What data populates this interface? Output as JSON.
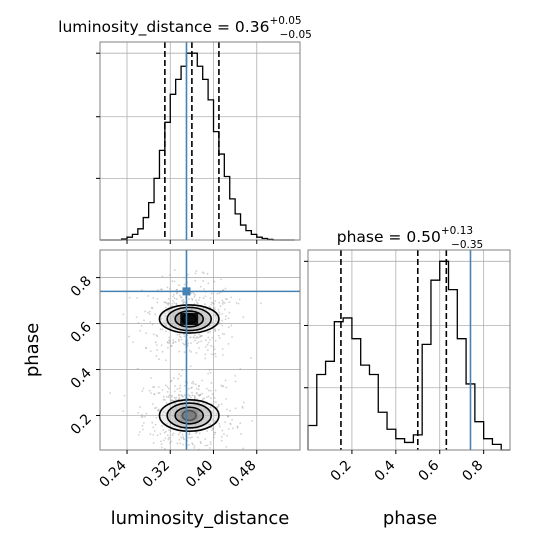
{
  "chart_data": [
    {
      "type": "histogram",
      "title": {
        "base": "luminosity_distance = 0.36",
        "upper": "+0.05",
        "lower": "−0.05"
      },
      "x": [
        0.19,
        0.2,
        0.21,
        0.22,
        0.23,
        0.24,
        0.25,
        0.26,
        0.27,
        0.28,
        0.29,
        0.3,
        0.31,
        0.32,
        0.33,
        0.34,
        0.35,
        0.36,
        0.37,
        0.38,
        0.39,
        0.4,
        0.41,
        0.42,
        0.43,
        0.44,
        0.45,
        0.46,
        0.47,
        0.48,
        0.49,
        0.5,
        0.51,
        0.52,
        0.53,
        0.54,
        0.55
      ],
      "values": [
        0.0,
        0.0,
        0.0,
        0.0,
        0.005,
        0.015,
        0.03,
        0.06,
        0.12,
        0.2,
        0.33,
        0.48,
        0.63,
        0.78,
        0.86,
        0.93,
        1.0,
        1.0,
        0.93,
        0.86,
        0.75,
        0.58,
        0.46,
        0.34,
        0.22,
        0.14,
        0.08,
        0.05,
        0.03,
        0.015,
        0.008,
        0.003,
        0.0,
        0.0,
        0.0,
        0.0
      ],
      "quantiles": [
        0.31,
        0.36,
        0.41
      ],
      "truth": 0.35,
      "xlim": [
        0.19,
        0.56
      ],
      "grid": true
    },
    {
      "type": "histogram",
      "title": {
        "base": "phase = 0.50",
        "upper": "+0.13",
        "lower": "−0.35"
      },
      "x": [
        0.0,
        0.04,
        0.08,
        0.12,
        0.16,
        0.2,
        0.24,
        0.28,
        0.32,
        0.36,
        0.4,
        0.44,
        0.48,
        0.52,
        0.56,
        0.6,
        0.64,
        0.68,
        0.72,
        0.76,
        0.8,
        0.84,
        0.88,
        0.92
      ],
      "values": [
        0.13,
        0.4,
        0.47,
        0.68,
        0.7,
        0.59,
        0.45,
        0.4,
        0.2,
        0.11,
        0.06,
        0.04,
        0.08,
        0.56,
        0.9,
        1.0,
        0.85,
        0.59,
        0.35,
        0.15,
        0.06,
        0.03,
        0.0
      ],
      "quantiles": [
        0.15,
        0.5,
        0.63
      ],
      "truth": 0.74,
      "xlim": [
        0.0,
        0.92
      ],
      "xticks": [
        "0.2",
        "0.4",
        "0.6",
        "0.8"
      ],
      "xlabel": "phase",
      "grid": true
    },
    {
      "type": "scatter",
      "density_contours": [
        {
          "center": [
            0.355,
            0.62
          ],
          "levels": [
            [
              0.012,
              0.028
            ],
            [
              0.025,
              0.048
            ],
            [
              0.04,
              0.07
            ],
            [
              0.055,
              0.085
            ]
          ]
        },
        {
          "center": [
            0.355,
            0.2
          ],
          "levels": [
            [
              0.012,
              0.03
            ],
            [
              0.025,
              0.05
            ],
            [
              0.04,
              0.075
            ],
            [
              0.055,
              0.095
            ]
          ]
        }
      ],
      "truth": [
        0.35,
        0.74
      ],
      "xlim": [
        0.19,
        0.56
      ],
      "ylim": [
        0.05,
        0.92
      ],
      "xticks": [
        "0.24",
        "0.32",
        "0.40",
        "0.48"
      ],
      "yticks": [
        "0.2",
        "0.4",
        "0.6",
        "0.8"
      ],
      "xlabel": "luminosity_distance",
      "ylabel": "phase",
      "grid": true
    }
  ]
}
